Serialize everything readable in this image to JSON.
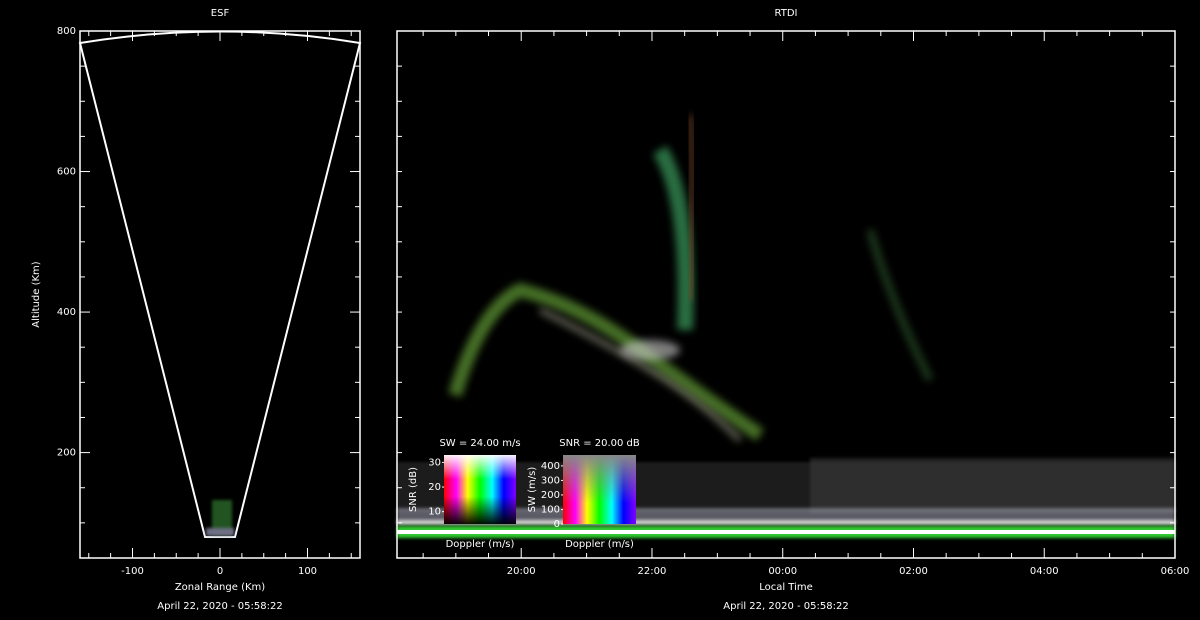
{
  "chart_data": [
    {
      "type": "radar-scan",
      "title": "ESF",
      "xlabel": "Zonal Range (Km)",
      "ylabel": "Altitude (Km)",
      "caption": "April 22, 2020 - 05:58:22",
      "xlim": [
        -160,
        160
      ],
      "ylim": [
        50,
        800
      ],
      "xticks": [
        -100,
        0,
        100
      ],
      "yticks": [
        200,
        400,
        600,
        800
      ],
      "xtick_marks": [
        -150,
        -125,
        -75,
        -50,
        -25,
        25,
        50,
        75,
        125,
        150
      ],
      "ytick_marks": [
        100,
        150,
        250,
        300,
        350,
        450,
        500,
        550,
        650,
        700,
        750
      ]
    },
    {
      "type": "rtdi",
      "title": "RTDI",
      "xlabel": "Local Time",
      "caption": "April 22, 2020 - 05:58:22",
      "xlim": [
        18.1,
        30
      ],
      "ylim": [
        50,
        800
      ],
      "xticks": [
        {
          "value": 20,
          "label": "20:00"
        },
        {
          "value": 22,
          "label": "22:00"
        },
        {
          "value": 24,
          "label": "00:00"
        },
        {
          "value": 26,
          "label": "02:00"
        },
        {
          "value": 28,
          "label": "04:00"
        },
        {
          "value": 30,
          "label": "06:00"
        }
      ],
      "xtick_marks": [
        18.5,
        19,
        19.5,
        20.5,
        21,
        21.5,
        22.5,
        23,
        23.5,
        24.5,
        25,
        25.5,
        26.5,
        27,
        27.5,
        28.5,
        29,
        29.5
      ],
      "ytick_marks": [
        100,
        150,
        200,
        250,
        300,
        350,
        400,
        450,
        500,
        550,
        600,
        650,
        700,
        750
      ],
      "colorbars": [
        {
          "title": "SW = 24.00 m/s",
          "ylabel": "SNR (dB)",
          "xlabel": "Doppler (m/s)",
          "ylim": [
            5,
            33
          ],
          "yticks": [
            10,
            20,
            30
          ]
        },
        {
          "title": "SNR = 20.00 dB",
          "ylabel": "SW (m/s)",
          "xlabel": "Doppler (m/s)",
          "ylim": [
            0,
            475
          ],
          "yticks": [
            0,
            100,
            200,
            300,
            400
          ]
        }
      ]
    }
  ]
}
